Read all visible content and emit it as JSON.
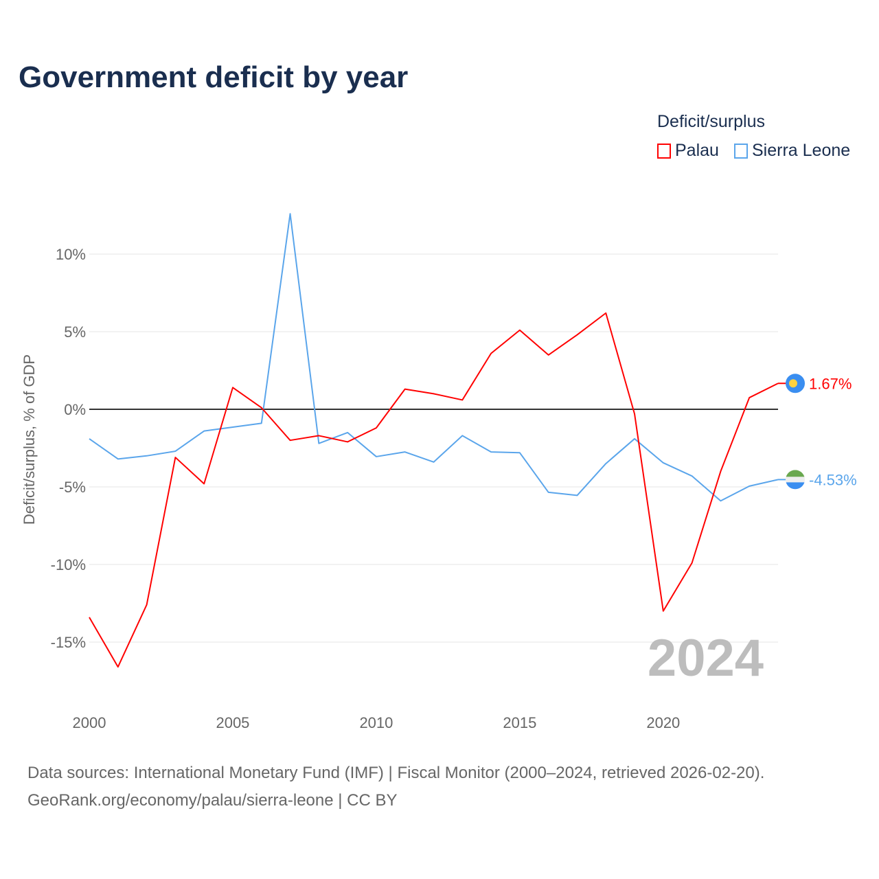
{
  "chart_data": {
    "type": "line",
    "title": "Government deficit by year",
    "ylabel": "Deficit/surplus, % of GDP",
    "xlabel": "",
    "legend_title": "Deficit/surplus",
    "legend_placement": "top-right",
    "x": [
      2000,
      2001,
      2002,
      2003,
      2004,
      2005,
      2006,
      2007,
      2008,
      2009,
      2010,
      2011,
      2012,
      2013,
      2014,
      2015,
      2016,
      2017,
      2018,
      2019,
      2020,
      2021,
      2022,
      2023,
      2024
    ],
    "xlim": [
      2000,
      2024
    ],
    "ylim": [
      -18,
      13
    ],
    "x_ticks": [
      2000,
      2005,
      2010,
      2015,
      2020
    ],
    "x_tick_labels": [
      "2000",
      "2005",
      "2010",
      "2015",
      "2020"
    ],
    "y_ticks": [
      10,
      5,
      0,
      -5,
      -10,
      -15
    ],
    "y_tick_labels": [
      "10%",
      "5%",
      "0%",
      "-5%",
      "-10%",
      "-15%"
    ],
    "grid": true,
    "year_watermark": "2024",
    "series": [
      {
        "name": "Palau",
        "color": "#ff0000",
        "end_label": "1.67%",
        "values": [
          -13.4,
          -16.6,
          -12.6,
          -3.1,
          -4.8,
          1.4,
          0.1,
          -2.0,
          -1.7,
          -2.1,
          -1.2,
          1.3,
          1.0,
          0.6,
          3.6,
          5.1,
          3.5,
          4.8,
          6.2,
          -0.3,
          -13.0,
          -9.9,
          -4.0,
          0.75,
          1.67
        ]
      },
      {
        "name": "Sierra Leone",
        "color": "#5aa5eb",
        "end_label": "-4.53%",
        "values": [
          -1.9,
          -3.2,
          -3.0,
          -2.7,
          -1.4,
          -1.15,
          -0.9,
          12.6,
          -2.2,
          -1.5,
          -3.05,
          -2.75,
          -3.4,
          -1.7,
          -2.75,
          -2.8,
          -5.35,
          -5.55,
          -3.5,
          -1.9,
          -3.45,
          -4.3,
          -5.9,
          -4.95,
          -4.53
        ]
      }
    ]
  },
  "source_line1": "Data sources: International Monetary Fund (IMF) | Fiscal Monitor (2000–2024, retrieved 2026-02-20).",
  "source_line2": "GeoRank.org/economy/palau/sierra-leone | CC BY"
}
